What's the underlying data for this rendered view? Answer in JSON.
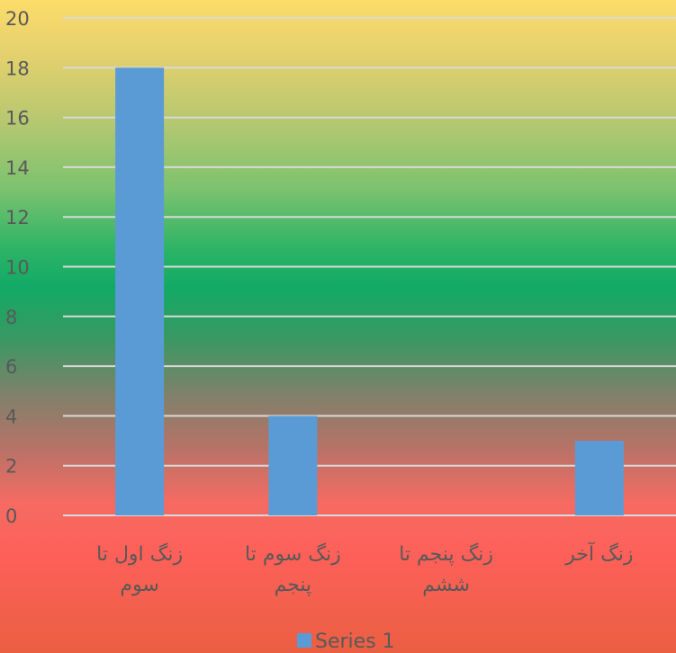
{
  "chart_data": {
    "type": "bar",
    "categories": [
      [
        "زنگ اول تا",
        "سوم"
      ],
      [
        "زنگ سوم تا",
        "پنجم"
      ],
      [
        "زنگ پنجم تا",
        "ششم"
      ],
      [
        "زنگ آخر"
      ]
    ],
    "series": [
      {
        "name": "Series 1",
        "values": [
          18,
          4,
          0,
          3
        ],
        "color": "#5b9bd5"
      }
    ],
    "ylim": [
      0,
      20
    ],
    "yticks": [
      0,
      2,
      4,
      6,
      8,
      10,
      12,
      14,
      16,
      18,
      20
    ],
    "grid": true,
    "legend": "bottom",
    "axis_text_color": "#595959",
    "gridline_color": "#d9d9d9"
  }
}
